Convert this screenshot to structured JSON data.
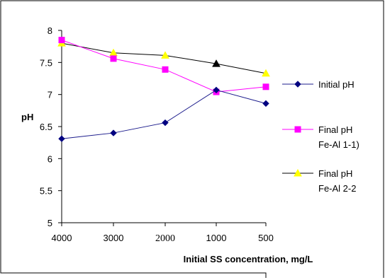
{
  "chart_data": {
    "type": "line",
    "categories": [
      "4000",
      "3000",
      "2000",
      "1000",
      "500"
    ],
    "ylabel": "pH",
    "xlabel": "Initial SS concentration, mg/L",
    "ylim": [
      5,
      8
    ],
    "yticks": [
      "5",
      "5.5",
      "6",
      "6.5",
      "7",
      "7.5",
      "8"
    ],
    "grid": false,
    "legend": "right",
    "series": [
      {
        "name": "Initial pH",
        "legend_lines": [
          "Initial pH"
        ],
        "color": "#000080",
        "line_color": "#1c1c8c",
        "marker": "diamond",
        "values": [
          6.31,
          6.4,
          6.56,
          7.07,
          6.86
        ]
      },
      {
        "name": "Final pH Fe-Al 1-1)",
        "legend_lines": [
          "Final pH",
          "Fe-Al 1-1)"
        ],
        "color": "#ff00ff",
        "line_color": "#ff00ff",
        "marker": "square",
        "values": [
          7.85,
          7.56,
          7.39,
          7.04,
          7.12
        ]
      },
      {
        "name": "Final pH Fe-Al 2-2",
        "legend_lines": [
          "Final pH",
          "Fe-Al 2-2"
        ],
        "color": "#ffff00",
        "line_color": "#000000",
        "marker": "triangle",
        "values": [
          7.8,
          7.65,
          7.61,
          7.48,
          7.33
        ]
      }
    ]
  }
}
